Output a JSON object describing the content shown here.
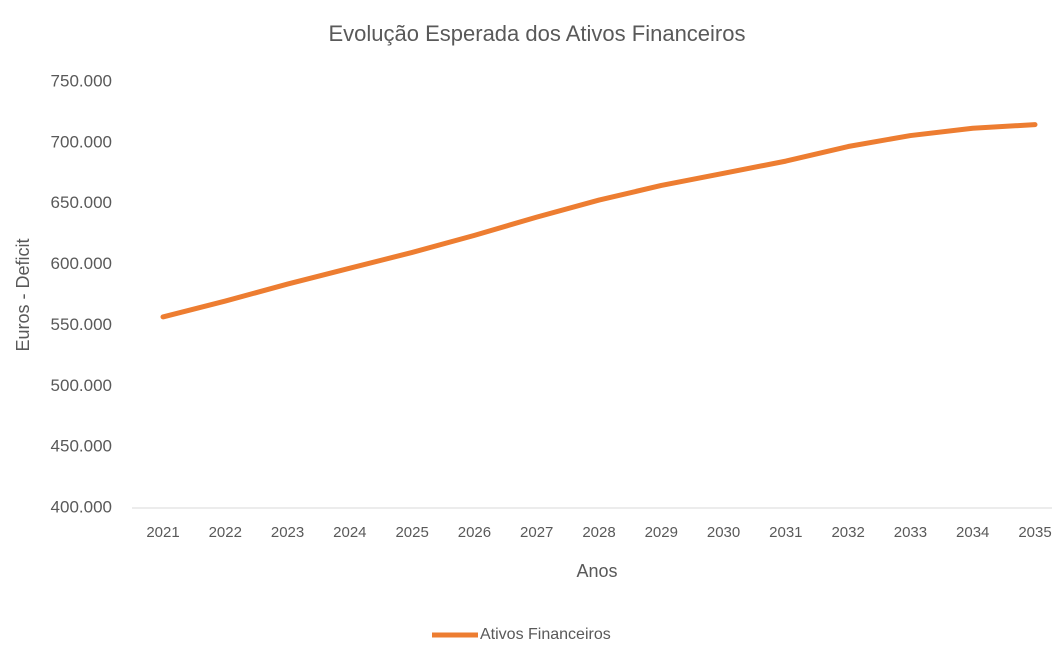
{
  "chart_data": {
    "type": "line",
    "title": "Evolução Esperada dos Ativos Financeiros",
    "x_label": "Anos",
    "y_label": "Euros - Deficit",
    "categories": [
      "2021",
      "2022",
      "2023",
      "2024",
      "2025",
      "2026",
      "2027",
      "2028",
      "2029",
      "2030",
      "2031",
      "2032",
      "2033",
      "2034",
      "2035"
    ],
    "series": [
      {
        "name": "Ativos Financeiros",
        "color": "#ed7d31",
        "values": [
          557000,
          570000,
          584000,
          597000,
          610000,
          624000,
          639000,
          653000,
          665000,
          675000,
          685000,
          697000,
          706000,
          712000,
          715000
        ]
      }
    ],
    "ylim": [
      400000,
      750000
    ],
    "yticks": [
      {
        "value": 400000,
        "label": "400.000"
      },
      {
        "value": 450000,
        "label": "450.000"
      },
      {
        "value": 500000,
        "label": "500.000"
      },
      {
        "value": 550000,
        "label": "550.000"
      },
      {
        "value": 600000,
        "label": "600.000"
      },
      {
        "value": 650000,
        "label": "650.000"
      },
      {
        "value": 700000,
        "label": "700.000"
      },
      {
        "value": 750000,
        "label": "750.000"
      }
    ],
    "legend": "bottom"
  }
}
